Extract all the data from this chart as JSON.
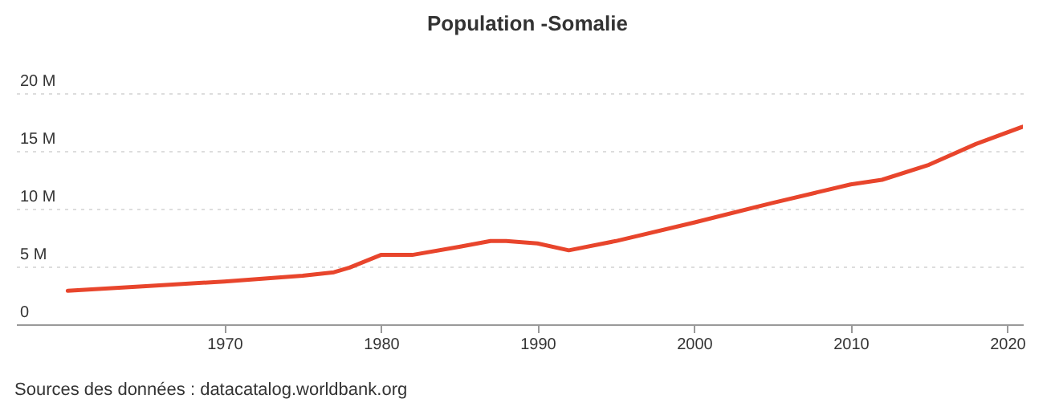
{
  "chart_data": {
    "type": "line",
    "title": "Population -Somalie",
    "x": [
      1960,
      1965,
      1970,
      1975,
      1977,
      1978,
      1980,
      1982,
      1985,
      1987,
      1988,
      1989,
      1990,
      1992,
      1995,
      2000,
      2005,
      2010,
      2012,
      2015,
      2018,
      2021
    ],
    "series": [
      {
        "color": "#e8452c",
        "values": [
          2.9,
          3.3,
          3.7,
          4.2,
          4.5,
          4.9,
          6.0,
          6.0,
          6.7,
          7.2,
          7.2,
          7.1,
          7.0,
          6.4,
          7.2,
          8.8,
          10.5,
          12.1,
          12.5,
          13.8,
          15.6,
          17.1
        ]
      }
    ],
    "xlim": [
      1956.7,
      2021
    ],
    "xticks": [
      1970,
      1980,
      1990,
      2000,
      2010,
      2020
    ],
    "ylim": [
      0,
      20
    ],
    "yticks": [
      {
        "value": 0,
        "label": "0"
      },
      {
        "value": 5,
        "label": "5 M"
      },
      {
        "value": 10,
        "label": "10 M"
      },
      {
        "value": 15,
        "label": "15 M"
      },
      {
        "value": 20,
        "label": "20 M"
      }
    ],
    "grid": "y",
    "legend": false,
    "marker": "none",
    "line_style": "solid",
    "annotations": [
      "Sources des données : datacatalog.worldbank.org"
    ]
  }
}
